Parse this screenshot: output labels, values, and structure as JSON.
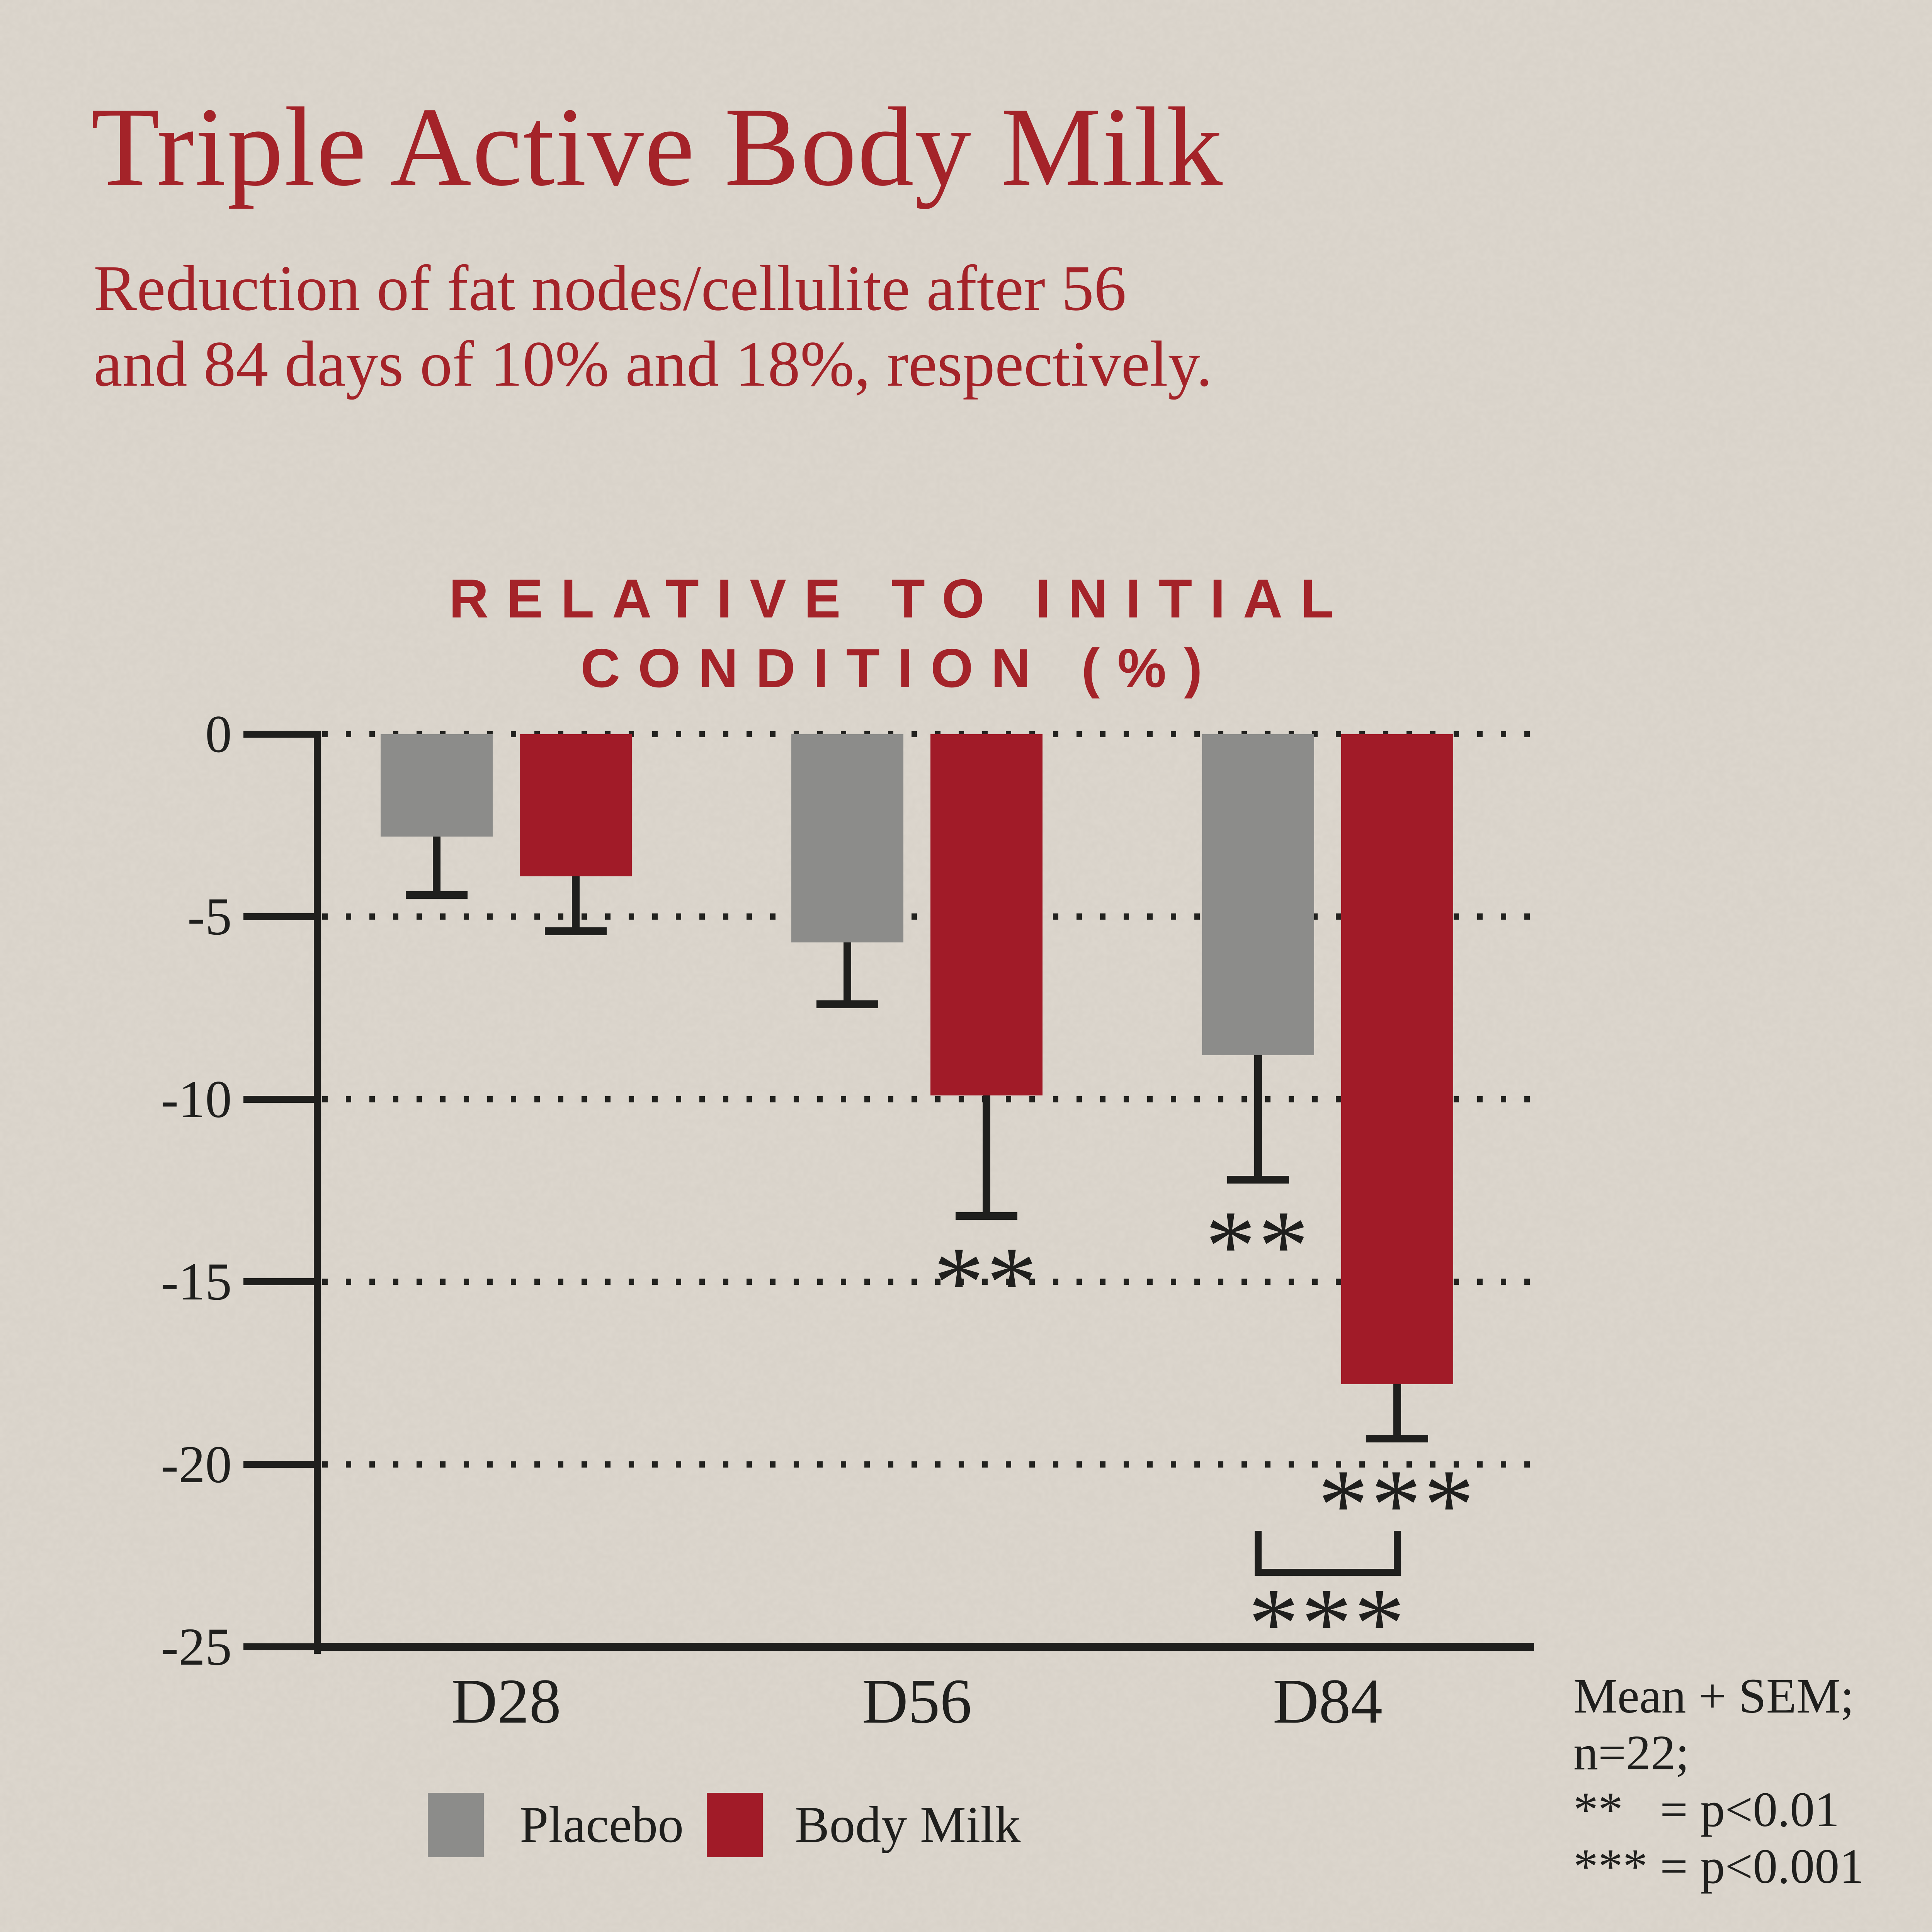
{
  "page": {
    "background_color": "#ded8ce",
    "ink_color": "#1f1f1d",
    "accent_red": "#a42329"
  },
  "header": {
    "title": "Triple Active Body Milk",
    "subtitle_line1": "Reduction of fat nodes/cellulite after 56",
    "subtitle_line2": "and 84 days of 10% and 18%, respectively."
  },
  "chart_data": {
    "type": "bar",
    "title_line1": "RELATIVE TO INITIAL",
    "title_line2": "CONDITION (%)",
    "categories": [
      "D28",
      "D56",
      "D84"
    ],
    "series": [
      {
        "name": "Placebo",
        "color": "#8c8c8a",
        "values": [
          -2.8,
          -5.7,
          -8.8
        ],
        "sem": [
          1.6,
          1.7,
          3.4
        ],
        "significance": [
          "",
          "",
          "**"
        ]
      },
      {
        "name": "Body Milk",
        "color": "#a11b28",
        "values": [
          -3.9,
          -9.9,
          -17.8
        ],
        "sem": [
          1.5,
          3.3,
          1.5
        ],
        "significance": [
          "",
          "**",
          "***"
        ]
      }
    ],
    "ylim": [
      -25,
      0
    ],
    "yticks": [
      0,
      -5,
      -10,
      -15,
      -20,
      -25
    ],
    "grid": "dotted horizontal lines at 0, -5, -10, -15, -20",
    "error_bars": "mean + SEM drawn downward with end caps",
    "comparison_bracket": {
      "category": "D84",
      "between": [
        "Placebo",
        "Body Milk"
      ],
      "label": "***"
    },
    "legend_position": "bottom"
  },
  "footnote": {
    "lines": [
      "Mean + SEM;",
      "n=22;",
      "**   = p<0.01",
      "*** = p<0.001"
    ]
  }
}
